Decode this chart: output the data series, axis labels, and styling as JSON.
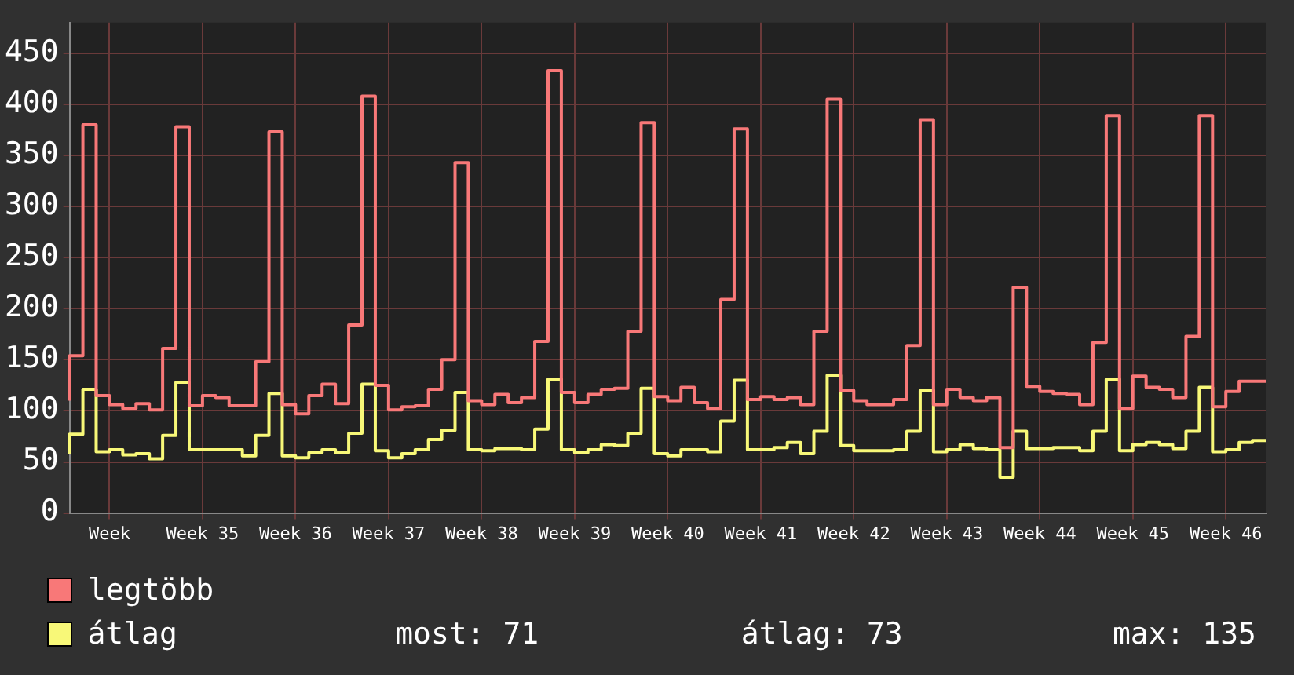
{
  "chart_data": {
    "type": "step",
    "categories": [
      null,
      null,
      null,
      "Week",
      null,
      null,
      null,
      null,
      null,
      null,
      "Week 35",
      null,
      null,
      null,
      null,
      null,
      null,
      "Week 36",
      null,
      null,
      null,
      null,
      null,
      null,
      "Week 37",
      null,
      null,
      null,
      null,
      null,
      null,
      "Week 38",
      null,
      null,
      null,
      null,
      null,
      null,
      "Week 39",
      null,
      null,
      null,
      null,
      null,
      null,
      "Week 40",
      null,
      null,
      null,
      null,
      null,
      null,
      "Week 41",
      null,
      null,
      null,
      null,
      null,
      null,
      "Week 42",
      null,
      null,
      null,
      null,
      null,
      null,
      "Week 43",
      null,
      null,
      null,
      null,
      null,
      null,
      "Week 44",
      null,
      null,
      null,
      null,
      null,
      null,
      "Week 45",
      null,
      null,
      null,
      null,
      null,
      null,
      "Week 46",
      null,
      null,
      null
    ],
    "series": [
      {
        "name": "legtöbb",
        "color": "#f87878",
        "values": [
          110,
          154,
          380,
          115,
          106,
          102,
          107,
          101,
          161,
          378,
          105,
          115,
          113,
          105,
          105,
          148,
          373,
          106,
          97,
          115,
          126,
          107,
          184,
          408,
          125,
          101,
          104,
          105,
          121,
          150,
          343,
          110,
          106,
          116,
          108,
          113,
          168,
          433,
          118,
          108,
          116,
          121,
          122,
          178,
          382,
          114,
          110,
          123,
          108,
          102,
          209,
          376,
          111,
          114,
          111,
          113,
          106,
          178,
          405,
          120,
          110,
          106,
          106,
          111,
          164,
          385,
          106,
          121,
          113,
          110,
          113,
          64,
          221,
          124,
          119,
          117,
          116,
          106,
          167,
          389,
          102,
          134,
          123,
          121,
          113,
          173,
          389,
          104,
          119,
          129,
          129
        ]
      },
      {
        "name": "átlag",
        "color": "#f8f878",
        "values": [
          58,
          77,
          121,
          60,
          62,
          57,
          58,
          53,
          76,
          128,
          62,
          62,
          62,
          62,
          56,
          76,
          117,
          56,
          54,
          59,
          62,
          59,
          78,
          126,
          61,
          54,
          58,
          62,
          72,
          81,
          118,
          62,
          61,
          63,
          63,
          62,
          82,
          131,
          62,
          59,
          62,
          67,
          66,
          78,
          122,
          58,
          56,
          62,
          62,
          60,
          90,
          130,
          62,
          62,
          64,
          69,
          58,
          80,
          135,
          66,
          61,
          61,
          61,
          62,
          80,
          120,
          60,
          62,
          67,
          63,
          62,
          35,
          80,
          63,
          63,
          64,
          64,
          61,
          80,
          131,
          61,
          67,
          69,
          67,
          63,
          80,
          123,
          60,
          62,
          69,
          71
        ]
      }
    ],
    "ylim": [
      0,
      480
    ],
    "yticks": [
      0,
      50,
      100,
      150,
      200,
      250,
      300,
      350,
      400,
      450
    ],
    "grid": true,
    "legend": "bottom left",
    "marker": "none",
    "annotations": [
      "most: 71",
      "átlag: 73",
      "max: 135"
    ]
  }
}
